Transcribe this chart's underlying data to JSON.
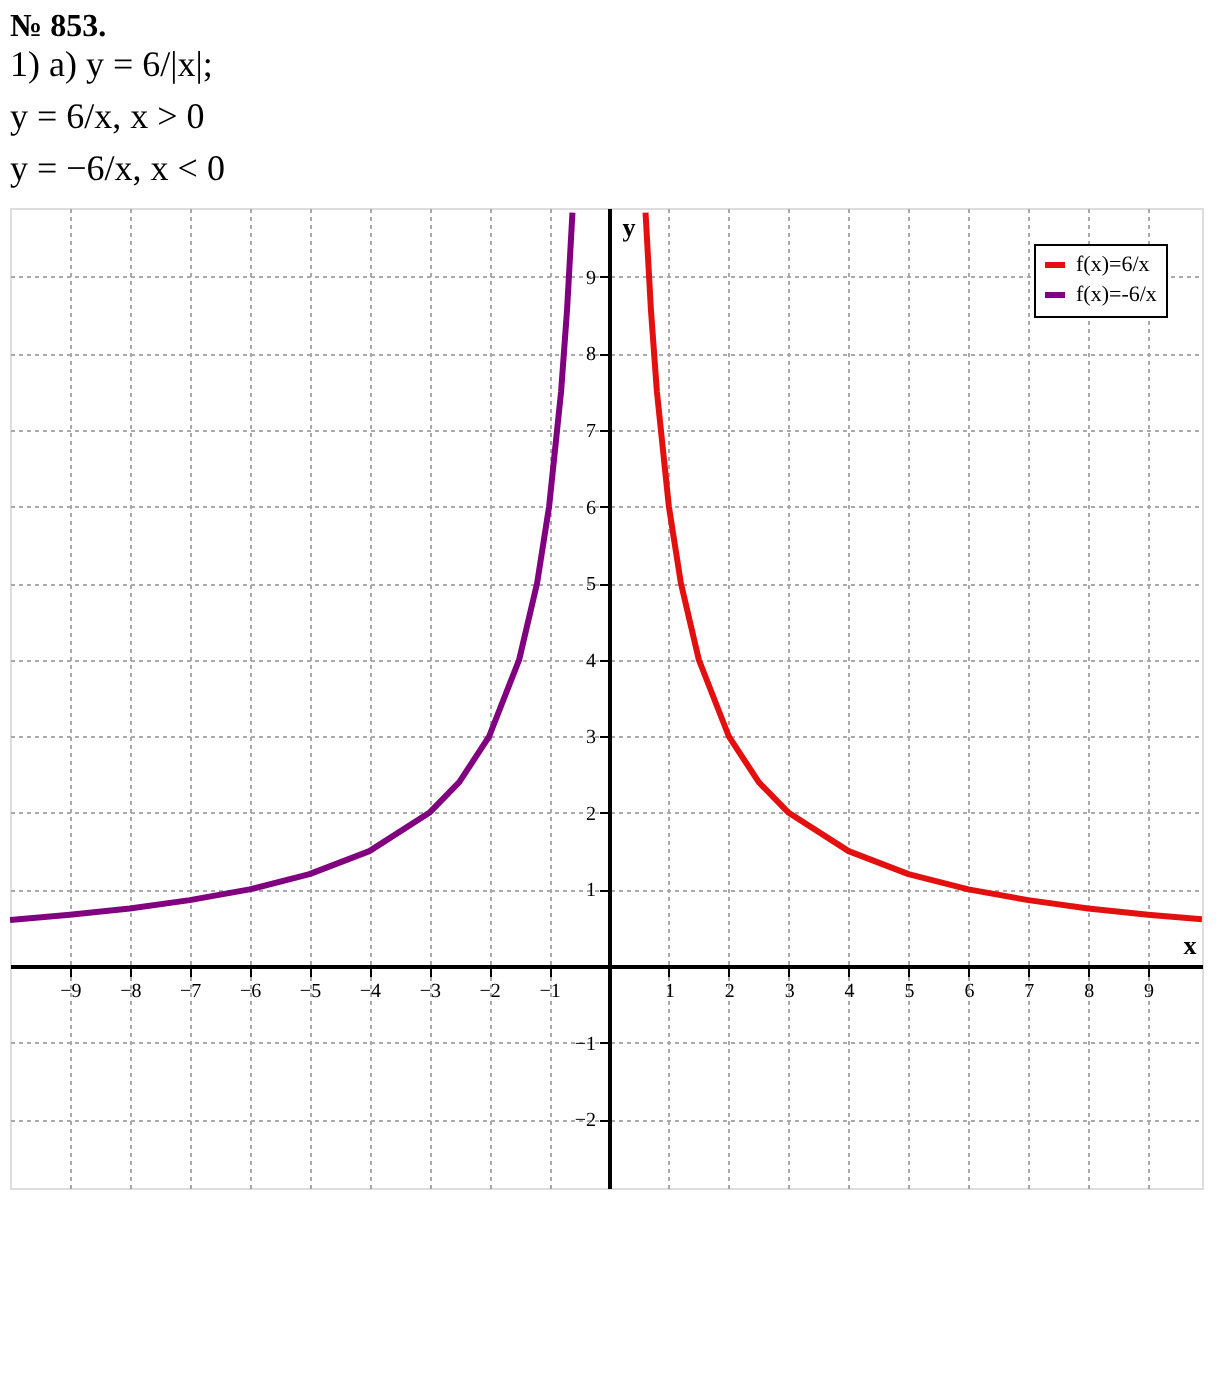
{
  "chart_data": {
    "type": "line",
    "title": "№ 853.",
    "annotations": [
      "1) а) y = 6/|x|;",
      "y = 6/x,   x > 0",
      "y = −6/x,   x < 0"
    ],
    "xlabel": "x",
    "ylabel": "y",
    "series": [
      {
        "name": "f(x)=6/x",
        "color": "#e41010",
        "x": [
          0.61,
          0.7,
          0.8,
          1,
          1.2,
          1.5,
          2,
          2.5,
          3,
          4,
          5,
          6,
          7,
          8,
          9,
          9.9
        ],
        "values": [
          9.84,
          8.57,
          7.5,
          6,
          5,
          4,
          3,
          2.4,
          2,
          1.5,
          1.2,
          1,
          0.86,
          0.75,
          0.67,
          0.61
        ]
      },
      {
        "name": "f(x)=-6/x",
        "color": "#800080",
        "x": [
          -10,
          -9,
          -8,
          -7,
          -6,
          -5,
          -4,
          -3,
          -2.5,
          -2,
          -1.5,
          -1.2,
          -1,
          -0.8,
          -0.7,
          -0.61
        ],
        "values": [
          0.6,
          0.67,
          0.75,
          0.86,
          1,
          1.2,
          1.5,
          2,
          2.4,
          3,
          4,
          5,
          6,
          7.5,
          8.57,
          9.84
        ]
      }
    ],
    "xlim": [
      -10,
      9.9
    ],
    "ylim": [
      -2.9,
      9.9
    ],
    "xticks": [
      -9,
      -8,
      -7,
      -6,
      -5,
      -4,
      -3,
      -2,
      -1,
      1,
      2,
      3,
      4,
      5,
      6,
      7,
      8,
      9
    ],
    "yticks": [
      -2,
      -1,
      1,
      2,
      3,
      4,
      5,
      6,
      7,
      8,
      9
    ],
    "grid": true,
    "legend": "top right",
    "marker": "none",
    "line_style": "solid"
  }
}
